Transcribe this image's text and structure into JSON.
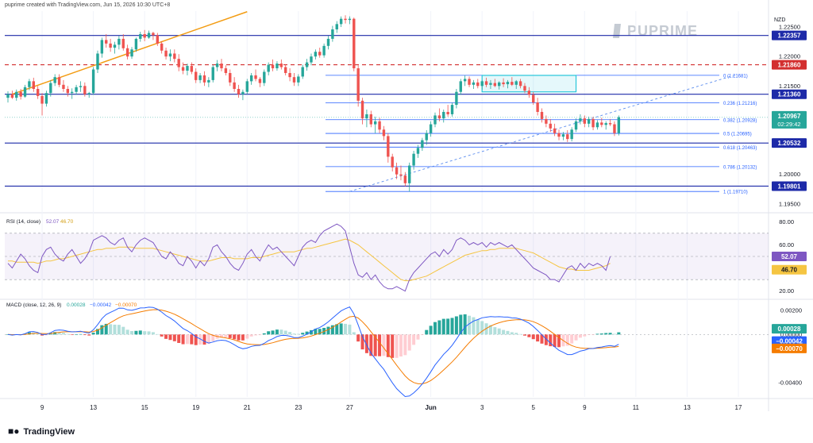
{
  "header": {
    "attribution": "puprime created with TradingView.com, Jun 15, 2026 10:30 UTC+8"
  },
  "brand": {
    "logo_text": "PUPRIME",
    "footer_text": "TradingView"
  },
  "chart_data": {
    "type": "candlestick",
    "currency_label": "NZD",
    "price_axis": {
      "ylim": [
        1.1943,
        1.2277
      ],
      "ticks": [
        "1.22500",
        "1.22000",
        "1.21500",
        "1.21000",
        "1.20500",
        "1.20000",
        "1.19500"
      ]
    },
    "x_axis": {
      "ticks": [
        {
          "label": "9",
          "bar": 8
        },
        {
          "label": "13",
          "bar": 20
        },
        {
          "label": "15",
          "bar": 32
        },
        {
          "label": "19",
          "bar": 44
        },
        {
          "label": "21",
          "bar": 56
        },
        {
          "label": "23",
          "bar": 68
        },
        {
          "label": "27",
          "bar": 80
        },
        {
          "label": "Jun",
          "bar": 99
        },
        {
          "label": "3",
          "bar": 111
        },
        {
          "label": "5",
          "bar": 123
        },
        {
          "label": "9",
          "bar": 135
        },
        {
          "label": "11",
          "bar": 147
        },
        {
          "label": "13",
          "bar": 159
        },
        {
          "label": "17",
          "bar": 171
        }
      ]
    },
    "horizontal_levels": [
      {
        "value": 1.22357,
        "label": "1.22357",
        "style": "solid",
        "color": "#1d2aa8"
      },
      {
        "value": 1.2186,
        "label": "1.21860",
        "style": "dashed",
        "color": "#d32f2f"
      },
      {
        "value": 1.2136,
        "label": "1.21360",
        "style": "solid",
        "color": "#1d2aa8"
      },
      {
        "value": 1.20532,
        "label": "1.20532",
        "style": "solid",
        "color": "#1d2aa8"
      },
      {
        "value": 1.19801,
        "label": "1.19801",
        "style": "solid",
        "color": "#1d2aa8"
      }
    ],
    "last_price": {
      "value": 1.20967,
      "label": "1.20967",
      "countdown": "02:29:42"
    },
    "fibonacci": [
      {
        "ratio": 0,
        "label": "0 (1.21681)",
        "value": 1.21681
      },
      {
        "ratio": 0.236,
        "label": "0.236 (1.21216)",
        "value": 1.21216
      },
      {
        "ratio": 0.382,
        "label": "0.382 (1.20928)",
        "value": 1.20928
      },
      {
        "ratio": 0.5,
        "label": "0.5 (1.20695)",
        "value": 1.20695
      },
      {
        "ratio": 0.618,
        "label": "0.618 (1.20463)",
        "value": 1.20463
      },
      {
        "ratio": 0.786,
        "label": "0.786 (1.20132)",
        "value": 1.20132
      },
      {
        "ratio": 1,
        "label": "1 (1.19710)",
        "value": 1.1971
      }
    ],
    "candles": [
      [
        1.213,
        1.2141,
        1.2122,
        1.2136
      ],
      [
        1.2136,
        1.2142,
        1.2128,
        1.213
      ],
      [
        1.213,
        1.2144,
        1.2125,
        1.214
      ],
      [
        1.214,
        1.2145,
        1.2127,
        1.2132
      ],
      [
        1.2132,
        1.2152,
        1.213,
        1.2148
      ],
      [
        1.2148,
        1.2162,
        1.2143,
        1.2158
      ],
      [
        1.2158,
        1.2164,
        1.214,
        1.2145
      ],
      [
        1.2145,
        1.215,
        1.2128,
        1.2133
      ],
      [
        1.2133,
        1.2138,
        1.21,
        1.212
      ],
      [
        1.212,
        1.2142,
        1.2115,
        1.2138
      ],
      [
        1.2138,
        1.216,
        1.2132,
        1.2155
      ],
      [
        1.2155,
        1.217,
        1.215,
        1.2165
      ],
      [
        1.2165,
        1.217,
        1.2148,
        1.2152
      ],
      [
        1.2152,
        1.216,
        1.214,
        1.2145
      ],
      [
        1.2145,
        1.215,
        1.2132,
        1.2138
      ],
      [
        1.2138,
        1.2146,
        1.2128,
        1.214
      ],
      [
        1.214,
        1.2152,
        1.2135,
        1.2148
      ],
      [
        1.2148,
        1.2158,
        1.214,
        1.215
      ],
      [
        1.215,
        1.2156,
        1.2132,
        1.2136
      ],
      [
        1.2136,
        1.214,
        1.213,
        1.2138
      ],
      [
        1.2138,
        1.2182,
        1.2135,
        1.2178
      ],
      [
        1.2178,
        1.221,
        1.2172,
        1.2205
      ],
      [
        1.2205,
        1.2232,
        1.2198,
        1.2228
      ],
      [
        1.2228,
        1.2238,
        1.2215,
        1.2222
      ],
      [
        1.2222,
        1.223,
        1.2208,
        1.2215
      ],
      [
        1.2215,
        1.2225,
        1.2205,
        1.222
      ],
      [
        1.222,
        1.2235,
        1.2212,
        1.223
      ],
      [
        1.223,
        1.2238,
        1.221,
        1.2214
      ],
      [
        1.2214,
        1.222,
        1.2195,
        1.22
      ],
      [
        1.22,
        1.2216,
        1.2196,
        1.2212
      ],
      [
        1.2212,
        1.2232,
        1.2208,
        1.223
      ],
      [
        1.223,
        1.2242,
        1.2225,
        1.2238
      ],
      [
        1.2238,
        1.2245,
        1.2226,
        1.2232
      ],
      [
        1.2232,
        1.2244,
        1.223,
        1.224
      ],
      [
        1.224,
        1.2242,
        1.2228,
        1.2236
      ],
      [
        1.2236,
        1.224,
        1.2218,
        1.2222
      ],
      [
        1.2222,
        1.2226,
        1.2205,
        1.221
      ],
      [
        1.221,
        1.2215,
        1.2195,
        1.22
      ],
      [
        1.22,
        1.2212,
        1.2192,
        1.2205
      ],
      [
        1.2205,
        1.2212,
        1.219,
        1.2196
      ],
      [
        1.2196,
        1.2204,
        1.2175,
        1.2182
      ],
      [
        1.2182,
        1.219,
        1.217,
        1.2176
      ],
      [
        1.2176,
        1.2188,
        1.2168,
        1.2184
      ],
      [
        1.2184,
        1.219,
        1.217,
        1.2174
      ],
      [
        1.2174,
        1.218,
        1.2155,
        1.216
      ],
      [
        1.216,
        1.2172,
        1.2155,
        1.2168
      ],
      [
        1.2168,
        1.2175,
        1.215,
        1.2156
      ],
      [
        1.2156,
        1.2165,
        1.2148,
        1.216
      ],
      [
        1.216,
        1.2186,
        1.2156,
        1.2182
      ],
      [
        1.2182,
        1.2194,
        1.2175,
        1.2188
      ],
      [
        1.2188,
        1.2196,
        1.2175,
        1.218
      ],
      [
        1.218,
        1.2185,
        1.2168,
        1.2172
      ],
      [
        1.2172,
        1.2178,
        1.215,
        1.2156
      ],
      [
        1.2156,
        1.2165,
        1.214,
        1.2145
      ],
      [
        1.2145,
        1.2152,
        1.213,
        1.2136
      ],
      [
        1.2136,
        1.2144,
        1.2126,
        1.214
      ],
      [
        1.214,
        1.2162,
        1.2136,
        1.2158
      ],
      [
        1.2158,
        1.2172,
        1.2152,
        1.2168
      ],
      [
        1.2168,
        1.2178,
        1.2158,
        1.2162
      ],
      [
        1.2162,
        1.2165,
        1.2148,
        1.2155
      ],
      [
        1.2155,
        1.2178,
        1.215,
        1.2174
      ],
      [
        1.2174,
        1.219,
        1.2168,
        1.2186
      ],
      [
        1.2186,
        1.2195,
        1.2175,
        1.218
      ],
      [
        1.218,
        1.2192,
        1.2176,
        1.2188
      ],
      [
        1.2188,
        1.2195,
        1.2178,
        1.2182
      ],
      [
        1.2182,
        1.2186,
        1.2168,
        1.2172
      ],
      [
        1.2172,
        1.218,
        1.2158,
        1.2165
      ],
      [
        1.2165,
        1.2172,
        1.215,
        1.2156
      ],
      [
        1.2156,
        1.217,
        1.215,
        1.2166
      ],
      [
        1.2166,
        1.2186,
        1.2162,
        1.2182
      ],
      [
        1.2182,
        1.2196,
        1.2176,
        1.219
      ],
      [
        1.219,
        1.2205,
        1.2185,
        1.22
      ],
      [
        1.22,
        1.2212,
        1.2195,
        1.2208
      ],
      [
        1.2208,
        1.2215,
        1.2198,
        1.2202
      ],
      [
        1.2202,
        1.2222,
        1.2198,
        1.2218
      ],
      [
        1.2218,
        1.2235,
        1.2212,
        1.223
      ],
      [
        1.223,
        1.2252,
        1.2225,
        1.2246
      ],
      [
        1.2246,
        1.226,
        1.224,
        1.2255
      ],
      [
        1.2255,
        1.2268,
        1.225,
        1.2264
      ],
      [
        1.2264,
        1.227,
        1.2256,
        1.2262
      ],
      [
        1.2262,
        1.2268,
        1.2255,
        1.2264
      ],
      [
        1.2264,
        1.2266,
        1.2175,
        1.218
      ],
      [
        1.218,
        1.2185,
        1.2115,
        1.2125
      ],
      [
        1.2125,
        1.213,
        1.2085,
        1.2095
      ],
      [
        1.2095,
        1.211,
        1.208,
        1.2102
      ],
      [
        1.2102,
        1.2108,
        1.208,
        1.2085
      ],
      [
        1.2085,
        1.2098,
        1.207,
        1.209
      ],
      [
        1.209,
        1.2096,
        1.207,
        1.2076
      ],
      [
        1.2076,
        1.2082,
        1.2058,
        1.2065
      ],
      [
        1.2065,
        1.207,
        1.202,
        1.203
      ],
      [
        1.203,
        1.2035,
        1.2005,
        1.2012
      ],
      [
        1.2012,
        1.202,
        1.1992,
        1.2
      ],
      [
        1.2,
        1.2015,
        1.199,
        1.1998
      ],
      [
        1.1998,
        1.2004,
        1.198,
        1.1985
      ],
      [
        1.1985,
        1.202,
        1.1971,
        1.2015
      ],
      [
        1.2015,
        1.204,
        1.2008,
        1.2035
      ],
      [
        1.2035,
        1.205,
        1.2028,
        1.2045
      ],
      [
        1.2045,
        1.2062,
        1.204,
        1.2058
      ],
      [
        1.2058,
        1.2075,
        1.205,
        1.207
      ],
      [
        1.207,
        1.209,
        1.2064,
        1.2085
      ],
      [
        1.2085,
        1.2105,
        1.208,
        1.21
      ],
      [
        1.21,
        1.2112,
        1.209,
        1.2095
      ],
      [
        1.2095,
        1.211,
        1.2088,
        1.2106
      ],
      [
        1.2106,
        1.2118,
        1.2098,
        1.2102
      ],
      [
        1.2102,
        1.2122,
        1.2098,
        1.2118
      ],
      [
        1.2118,
        1.2145,
        1.2112,
        1.214
      ],
      [
        1.214,
        1.2162,
        1.2135,
        1.2158
      ],
      [
        1.2158,
        1.2168,
        1.215,
        1.2162
      ],
      [
        1.2162,
        1.2166,
        1.2148,
        1.2152
      ],
      [
        1.2152,
        1.216,
        1.2145,
        1.2156
      ],
      [
        1.2156,
        1.2162,
        1.2146,
        1.215
      ],
      [
        1.215,
        1.216,
        1.2144,
        1.2158
      ],
      [
        1.2158,
        1.2164,
        1.2148,
        1.2152
      ],
      [
        1.2152,
        1.216,
        1.2145,
        1.2155
      ],
      [
        1.2155,
        1.2162,
        1.2148,
        1.215
      ],
      [
        1.215,
        1.2158,
        1.2144,
        1.2156
      ],
      [
        1.2156,
        1.2163,
        1.2148,
        1.2153
      ],
      [
        1.2153,
        1.216,
        1.2146,
        1.2157
      ],
      [
        1.2157,
        1.2165,
        1.215,
        1.2152
      ],
      [
        1.2152,
        1.216,
        1.2145,
        1.2158
      ],
      [
        1.2158,
        1.2162,
        1.2146,
        1.215
      ],
      [
        1.215,
        1.2155,
        1.2138,
        1.2142
      ],
      [
        1.2142,
        1.2148,
        1.213,
        1.2135
      ],
      [
        1.2135,
        1.214,
        1.2118,
        1.2122
      ],
      [
        1.2122,
        1.213,
        1.21,
        1.2106
      ],
      [
        1.2106,
        1.2112,
        1.2088,
        1.2094
      ],
      [
        1.2094,
        1.21,
        1.208,
        1.2086
      ],
      [
        1.2086,
        1.2094,
        1.2072,
        1.2078
      ],
      [
        1.2078,
        1.2086,
        1.2065,
        1.207
      ],
      [
        1.207,
        1.2076,
        1.2058,
        1.2064
      ],
      [
        1.2064,
        1.2072,
        1.2058,
        1.2068
      ],
      [
        1.2068,
        1.2075,
        1.2055,
        1.206
      ],
      [
        1.206,
        1.208,
        1.2056,
        1.2076
      ],
      [
        1.2076,
        1.2095,
        1.2072,
        1.209
      ],
      [
        1.209,
        1.2102,
        1.2085,
        1.2095
      ],
      [
        1.2095,
        1.21,
        1.208,
        1.2086
      ],
      [
        1.2086,
        1.2098,
        1.208,
        1.2094
      ],
      [
        1.2094,
        1.2098,
        1.2075,
        1.208
      ],
      [
        1.208,
        1.2092,
        1.2076,
        1.2088
      ],
      [
        1.2088,
        1.2096,
        1.208,
        1.2084
      ],
      [
        1.2084,
        1.209,
        1.2076,
        1.2087
      ],
      [
        1.2087,
        1.2094,
        1.2082,
        1.2085
      ],
      [
        1.2085,
        1.209,
        1.2065,
        1.207
      ],
      [
        1.207,
        1.21,
        1.2066,
        1.2097
      ]
    ],
    "trendline": {
      "points": [
        [
          1,
          1.2136
        ],
        [
          56,
          1.2276
        ]
      ],
      "color": "#f39c12"
    },
    "diagonal_dashed": {
      "points": [
        [
          80,
          1.1971
        ],
        [
          170,
          1.2168
        ]
      ],
      "color": "#5b8def"
    },
    "consolidation_box": {
      "bar_start": 111,
      "bar_end": 133,
      "top": 1.2168,
      "bottom": 1.214,
      "color": "#26c6da"
    },
    "rsi": {
      "label": "RSI (14, close)",
      "rsi_value": "52.07",
      "ma_value": "46.70",
      "ylim": [
        15,
        85
      ],
      "ticks": [
        "80.00",
        "60.00",
        "40.00",
        "20.00"
      ],
      "band": [
        30,
        70
      ],
      "rsi_color": "#7e57c2",
      "ma_color": "#f5c542",
      "rsi_series": [
        44,
        40,
        46,
        52,
        48,
        42,
        38,
        36,
        50,
        56,
        58,
        52,
        48,
        46,
        52,
        56,
        50,
        44,
        48,
        54,
        64,
        66,
        68,
        66,
        62,
        60,
        64,
        66,
        58,
        54,
        60,
        64,
        66,
        64,
        62,
        56,
        50,
        48,
        54,
        50,
        44,
        42,
        50,
        46,
        40,
        46,
        42,
        48,
        58,
        60,
        54,
        50,
        44,
        40,
        38,
        44,
        52,
        56,
        50,
        46,
        54,
        60,
        56,
        58,
        54,
        50,
        46,
        42,
        50,
        58,
        62,
        64,
        62,
        68,
        72,
        74,
        76,
        78,
        76,
        72,
        58,
        44,
        34,
        32,
        36,
        30,
        34,
        28,
        24,
        22,
        22,
        24,
        22,
        20,
        30,
        36,
        40,
        44,
        48,
        52,
        54,
        50,
        56,
        52,
        56,
        64,
        66,
        64,
        60,
        62,
        60,
        62,
        58,
        62,
        60,
        62,
        60,
        58,
        60,
        56,
        52,
        48,
        44,
        40,
        38,
        36,
        34,
        30,
        30,
        28,
        34,
        40,
        42,
        38,
        44,
        40,
        44,
        42,
        44,
        42,
        38,
        50
      ],
      "ma_series": [
        46,
        46,
        45,
        45,
        45,
        45,
        45,
        44,
        45,
        46,
        46,
        47,
        48,
        48,
        49,
        50,
        51,
        52,
        53,
        54,
        55,
        56,
        56,
        57,
        57,
        57,
        58,
        58,
        58,
        58,
        57,
        57,
        57,
        57,
        57,
        56,
        55,
        54,
        53,
        52,
        51,
        50,
        49,
        48,
        47,
        46,
        46,
        46,
        47,
        48,
        49,
        49,
        49,
        48,
        48,
        48,
        48,
        49,
        49,
        49,
        50,
        51,
        52,
        53,
        54,
        54,
        54,
        54,
        55,
        56,
        57,
        57,
        58,
        59,
        60,
        61,
        62,
        63,
        64,
        65,
        64,
        62,
        60,
        57,
        54,
        51,
        48,
        45,
        42,
        39,
        36,
        33,
        30,
        29,
        29,
        30,
        31,
        32,
        33,
        35,
        37,
        39,
        41,
        43,
        45,
        47,
        49,
        51,
        52,
        53,
        54,
        55,
        55,
        56,
        56,
        57,
        57,
        57,
        57,
        57,
        56,
        55,
        54,
        53,
        51,
        49,
        47,
        45,
        43,
        41,
        40,
        39,
        39,
        38,
        38,
        38,
        38,
        39,
        40,
        41,
        42,
        44
      ]
    },
    "macd": {
      "label": "MACD (close, 12, 26, 9)",
      "hist_value": "0.00028",
      "macd_value": "−0.00042",
      "signal_value": "−0.00070",
      "axis_macd_label": "−0.00042",
      "axis_signal_label": "−0.00070",
      "ylim": [
        -0.0052,
        0.0026
      ],
      "ticks": [
        "0.00200",
        "0.00000",
        "-0.00400"
      ],
      "macd_color": "#2962ff",
      "signal_color": "#f57c00",
      "hist_up_strong": "#26a69a",
      "hist_up_weak": "#b2dfdb",
      "hist_down_strong": "#ef5350",
      "hist_down_weak": "#ffcdd2"
    }
  }
}
